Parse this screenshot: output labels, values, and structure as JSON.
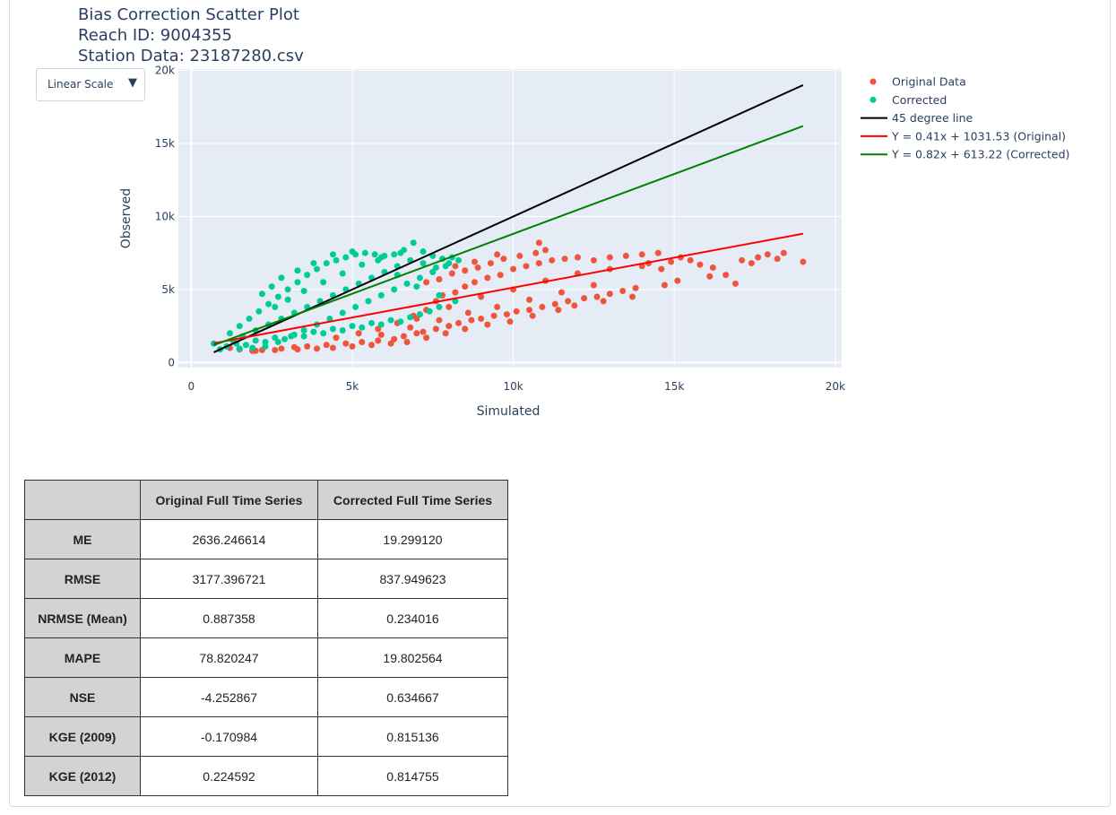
{
  "title_lines": [
    "Bias Correction Scatter Plot",
    "Reach ID: 9004355",
    "Station Data: 23187280.csv"
  ],
  "scale_dropdown": {
    "selected": "Linear Scale",
    "arrow": "▼"
  },
  "chart_data": {
    "type": "scatter",
    "title": "Bias Correction Scatter Plot",
    "xlabel": "Simulated",
    "ylabel": "Observed",
    "xlim": [
      -400,
      20200
    ],
    "ylim": [
      -350,
      20100
    ],
    "x_ticks": [
      0,
      5000,
      10000,
      15000,
      20000
    ],
    "x_tick_labels": [
      "0",
      "5k",
      "10k",
      "15k",
      "20k"
    ],
    "y_ticks": [
      0,
      5000,
      10000,
      15000,
      20000
    ],
    "y_tick_labels": [
      "0",
      "5k",
      "10k",
      "15k",
      "20k"
    ],
    "grid": true,
    "legend_position": "right",
    "plot_bg": "#e5ecf6",
    "series": [
      {
        "name": "Original Data",
        "kind": "markers",
        "color": "#ef553b",
        "points": [
          [
            1900,
            800
          ],
          [
            2200,
            850
          ],
          [
            2800,
            950
          ],
          [
            3200,
            1050
          ],
          [
            3600,
            1100
          ],
          [
            4200,
            1200
          ],
          [
            4800,
            1300
          ],
          [
            5300,
            1400
          ],
          [
            5800,
            1500
          ],
          [
            6300,
            1600
          ],
          [
            6600,
            1800
          ],
          [
            7000,
            2000
          ],
          [
            7200,
            2100
          ],
          [
            7600,
            2300
          ],
          [
            8000,
            2500
          ],
          [
            8300,
            2700
          ],
          [
            8700,
            2900
          ],
          [
            9000,
            3000
          ],
          [
            9400,
            3200
          ],
          [
            9800,
            3300
          ],
          [
            10100,
            3500
          ],
          [
            10500,
            3600
          ],
          [
            10900,
            3800
          ],
          [
            11300,
            4000
          ],
          [
            11700,
            4200
          ],
          [
            12200,
            4400
          ],
          [
            12600,
            4500
          ],
          [
            13000,
            4700
          ],
          [
            13400,
            4900
          ],
          [
            13800,
            5100
          ],
          [
            6900,
            3200
          ],
          [
            7300,
            3600
          ],
          [
            7600,
            4200
          ],
          [
            7800,
            4600
          ],
          [
            8200,
            4800
          ],
          [
            8500,
            5200
          ],
          [
            8800,
            5500
          ],
          [
            9200,
            5800
          ],
          [
            9600,
            6000
          ],
          [
            10000,
            6400
          ],
          [
            10400,
            6600
          ],
          [
            10800,
            6800
          ],
          [
            11200,
            7000
          ],
          [
            11600,
            7100
          ],
          [
            12000,
            7200
          ],
          [
            12500,
            7000
          ],
          [
            13000,
            7200
          ],
          [
            13500,
            7300
          ],
          [
            14000,
            7400
          ],
          [
            14500,
            7500
          ],
          [
            7300,
            5500
          ],
          [
            7700,
            5700
          ],
          [
            8100,
            6100
          ],
          [
            8500,
            6300
          ],
          [
            8900,
            6500
          ],
          [
            9300,
            6800
          ],
          [
            9700,
            7100
          ],
          [
            10200,
            7300
          ],
          [
            10700,
            7500
          ],
          [
            11000,
            7700
          ],
          [
            10800,
            8200
          ],
          [
            9500,
            7400
          ],
          [
            8800,
            6900
          ],
          [
            8200,
            6600
          ],
          [
            7500,
            6200
          ],
          [
            14200,
            6800
          ],
          [
            14600,
            6400
          ],
          [
            14900,
            6900
          ],
          [
            15200,
            7200
          ],
          [
            15500,
            7000
          ],
          [
            15800,
            6700
          ],
          [
            16200,
            6500
          ],
          [
            16600,
            6000
          ],
          [
            16900,
            5400
          ],
          [
            17100,
            7000
          ],
          [
            17400,
            6800
          ],
          [
            17600,
            7200
          ],
          [
            17900,
            7400
          ],
          [
            18400,
            7500
          ],
          [
            18200,
            7100
          ],
          [
            19000,
            6900
          ],
          [
            16100,
            5900
          ],
          [
            15100,
            5600
          ],
          [
            14700,
            5300
          ],
          [
            13700,
            4500
          ],
          [
            12800,
            4200
          ],
          [
            11900,
            3900
          ],
          [
            11400,
            3600
          ],
          [
            10600,
            3200
          ],
          [
            9900,
            2800
          ],
          [
            9200,
            2600
          ],
          [
            8500,
            2300
          ],
          [
            7900,
            2000
          ],
          [
            7300,
            1700
          ],
          [
            6700,
            1400
          ],
          [
            6200,
            1300
          ],
          [
            5600,
            1200
          ],
          [
            5000,
            1100
          ],
          [
            4400,
            1000
          ],
          [
            3900,
            950
          ],
          [
            3300,
            900
          ],
          [
            2600,
            850
          ],
          [
            2000,
            800
          ],
          [
            1500,
            900
          ],
          [
            1200,
            1000
          ],
          [
            4500,
            1700
          ],
          [
            5200,
            2000
          ],
          [
            5800,
            2300
          ],
          [
            6400,
            2700
          ],
          [
            7000,
            3000
          ],
          [
            8000,
            3800
          ],
          [
            9000,
            4500
          ],
          [
            10000,
            5000
          ],
          [
            11000,
            5600
          ],
          [
            12000,
            6100
          ],
          [
            13000,
            6400
          ],
          [
            14000,
            6600
          ],
          [
            12500,
            5300
          ],
          [
            11500,
            4800
          ],
          [
            10500,
            4300
          ],
          [
            9500,
            3800
          ],
          [
            8600,
            3400
          ],
          [
            7700,
            2900
          ],
          [
            6800,
            2400
          ],
          [
            5900,
            1900
          ]
        ]
      },
      {
        "name": "Corrected",
        "kind": "markers",
        "color": "#00cc96",
        "points": [
          [
            700,
            1300
          ],
          [
            900,
            900
          ],
          [
            1100,
            1100
          ],
          [
            1400,
            1300
          ],
          [
            1700,
            1200
          ],
          [
            2000,
            1500
          ],
          [
            2300,
            1400
          ],
          [
            2600,
            1700
          ],
          [
            2900,
            1600
          ],
          [
            3200,
            1900
          ],
          [
            3500,
            1800
          ],
          [
            3800,
            2100
          ],
          [
            4100,
            2000
          ],
          [
            4400,
            2300
          ],
          [
            4700,
            2200
          ],
          [
            5000,
            2500
          ],
          [
            5300,
            2400
          ],
          [
            5600,
            2700
          ],
          [
            5900,
            2600
          ],
          [
            6200,
            2900
          ],
          [
            6500,
            2800
          ],
          [
            6800,
            3100
          ],
          [
            7100,
            3300
          ],
          [
            7400,
            3500
          ],
          [
            7700,
            3800
          ],
          [
            1200,
            2000
          ],
          [
            1500,
            2500
          ],
          [
            1800,
            3000
          ],
          [
            2100,
            3500
          ],
          [
            2400,
            4000
          ],
          [
            2700,
            4500
          ],
          [
            3000,
            5000
          ],
          [
            3300,
            5500
          ],
          [
            3600,
            6000
          ],
          [
            3900,
            6400
          ],
          [
            4200,
            6800
          ],
          [
            4500,
            7000
          ],
          [
            4800,
            7200
          ],
          [
            5100,
            7400
          ],
          [
            5400,
            7500
          ],
          [
            5700,
            7400
          ],
          [
            6000,
            7300
          ],
          [
            6300,
            7400
          ],
          [
            6600,
            7700
          ],
          [
            6900,
            8200
          ],
          [
            7200,
            7600
          ],
          [
            7500,
            7300
          ],
          [
            7800,
            7100
          ],
          [
            8100,
            7200
          ],
          [
            8300,
            7000
          ],
          [
            7900,
            6600
          ],
          [
            7500,
            6200
          ],
          [
            7100,
            5800
          ],
          [
            6700,
            5400
          ],
          [
            6300,
            5000
          ],
          [
            5900,
            4600
          ],
          [
            5500,
            4200
          ],
          [
            5100,
            3800
          ],
          [
            4700,
            3400
          ],
          [
            4300,
            3000
          ],
          [
            3900,
            2600
          ],
          [
            3500,
            2200
          ],
          [
            3100,
            1800
          ],
          [
            2700,
            1400
          ],
          [
            2300,
            1100
          ],
          [
            1900,
            1000
          ],
          [
            1500,
            950
          ],
          [
            1300,
            1500
          ],
          [
            1600,
            1800
          ],
          [
            2000,
            2200
          ],
          [
            2400,
            2600
          ],
          [
            2800,
            3000
          ],
          [
            3200,
            3400
          ],
          [
            3600,
            3800
          ],
          [
            4000,
            4200
          ],
          [
            4400,
            4600
          ],
          [
            4800,
            5000
          ],
          [
            5200,
            5400
          ],
          [
            5600,
            5800
          ],
          [
            6000,
            6200
          ],
          [
            6400,
            6600
          ],
          [
            6800,
            7000
          ],
          [
            7200,
            6800
          ],
          [
            7600,
            6500
          ],
          [
            8000,
            6800
          ],
          [
            2800,
            5800
          ],
          [
            3300,
            6300
          ],
          [
            3800,
            6800
          ],
          [
            4400,
            7400
          ],
          [
            5000,
            7600
          ],
          [
            5800,
            7000
          ],
          [
            6400,
            6000
          ],
          [
            7000,
            5200
          ],
          [
            7700,
            4600
          ],
          [
            8200,
            4200
          ],
          [
            2500,
            5200
          ],
          [
            2200,
            4700
          ],
          [
            2600,
            3800
          ],
          [
            3000,
            4300
          ],
          [
            3500,
            4900
          ],
          [
            4100,
            5500
          ],
          [
            4700,
            6100
          ],
          [
            5300,
            6700
          ],
          [
            5900,
            7200
          ],
          [
            6500,
            7500
          ]
        ]
      },
      {
        "name": "45 degree line",
        "kind": "line",
        "color": "#000000",
        "x": [
          700,
          19000
        ],
        "y": [
          700,
          19000
        ]
      },
      {
        "name": "Y = 0.41x + 1031.53 (Original)",
        "kind": "line",
        "color": "#ff0000",
        "x": [
          700,
          19000
        ],
        "y": [
          1318.53,
          8821.53
        ]
      },
      {
        "name": "Y = 0.82x + 613.22 (Corrected)",
        "kind": "line",
        "color": "#008000",
        "x": [
          700,
          19000
        ],
        "y": [
          1187.22,
          16193.22
        ]
      }
    ]
  },
  "stats_table": {
    "headers": [
      "",
      "Original Full Time Series",
      "Corrected Full Time Series"
    ],
    "rows": [
      {
        "metric": "ME",
        "original": "2636.246614",
        "corrected": "19.299120"
      },
      {
        "metric": "RMSE",
        "original": "3177.396721",
        "corrected": "837.949623"
      },
      {
        "metric": "NRMSE (Mean)",
        "original": "0.887358",
        "corrected": "0.234016"
      },
      {
        "metric": "MAPE",
        "original": "78.820247",
        "corrected": "19.802564"
      },
      {
        "metric": "NSE",
        "original": "-4.252867",
        "corrected": "0.634667"
      },
      {
        "metric": "KGE (2009)",
        "original": "-0.170984",
        "corrected": "0.815136"
      },
      {
        "metric": "KGE (2012)",
        "original": "0.224592",
        "corrected": "0.814755"
      }
    ]
  }
}
